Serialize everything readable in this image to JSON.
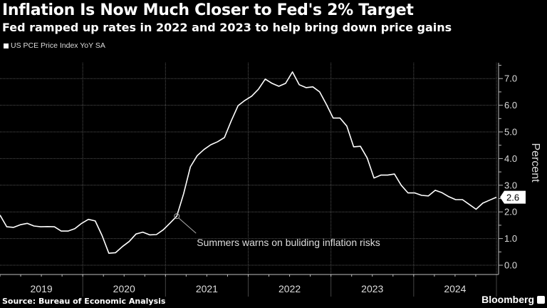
{
  "header": {
    "title": "Inflation Is Now Much Closer to Fed's 2% Target",
    "subtitle": "Fed ramped up rates in 2022 and 2023 to help bring down price gains"
  },
  "footer": {
    "source": "Source: Bureau of Economic Analysis",
    "brand": "Bloomberg"
  },
  "chart_data": {
    "type": "line",
    "title": "Inflation Is Now Much Closer to Fed's 2% Target",
    "subtitle": "Fed ramped up rates in 2022 and 2023 to help bring down price gains",
    "xlabel": "",
    "ylabel": "Percent",
    "ylim": [
      0,
      7.9
    ],
    "yticks": [
      "0.0",
      "1.0",
      "2.0",
      "3.0",
      "4.0",
      "5.0",
      "6.0",
      "7.0"
    ],
    "year_labels": [
      "2019",
      "2020",
      "2021",
      "2022",
      "2023",
      "2024"
    ],
    "grid": true,
    "legend_position": "top-left",
    "series": [
      {
        "name": "US PCE Price Index YoY SA",
        "color": "#ffffff",
        "values": [
          1.88,
          1.44,
          1.42,
          1.52,
          1.57,
          1.47,
          1.44,
          1.45,
          1.44,
          1.28,
          1.28,
          1.37,
          1.57,
          1.72,
          1.66,
          1.12,
          0.45,
          0.47,
          0.7,
          0.89,
          1.17,
          1.24,
          1.14,
          1.15,
          1.33,
          1.58,
          1.84,
          2.68,
          3.69,
          4.11,
          4.34,
          4.52,
          4.63,
          4.79,
          5.41,
          5.98,
          6.18,
          6.34,
          6.6,
          6.98,
          6.82,
          6.71,
          6.82,
          7.25,
          6.77,
          6.66,
          6.69,
          6.5,
          6.03,
          5.52,
          5.52,
          5.22,
          4.44,
          4.46,
          4.02,
          3.27,
          3.38,
          3.38,
          3.42,
          3.0,
          2.71,
          2.71,
          2.62,
          2.6,
          2.81,
          2.72,
          2.57,
          2.46,
          2.46,
          2.28,
          2.1,
          2.33,
          2.44,
          2.55
        ]
      }
    ],
    "last_value_label": "2.6",
    "annotations": [
      {
        "text": "Summers warns on buliding inflation risks",
        "point_index": 26
      }
    ]
  }
}
